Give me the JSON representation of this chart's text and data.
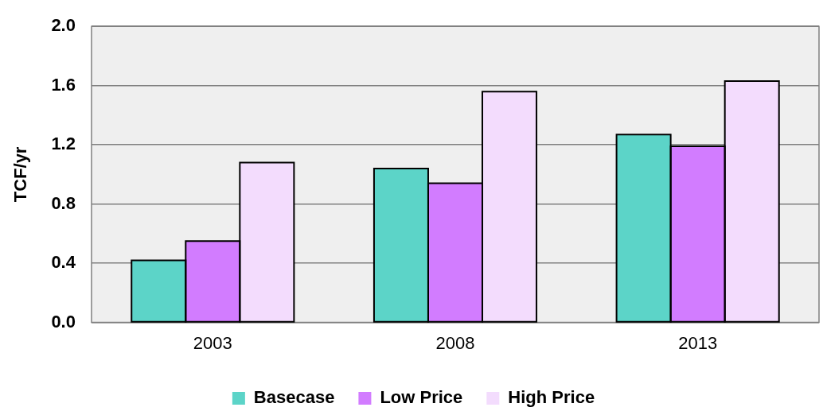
{
  "chart_data": {
    "type": "bar",
    "ylabel": "TCF/yr",
    "categories": [
      "2003",
      "2008",
      "2013"
    ],
    "series": [
      {
        "name": "Basecase",
        "color": "#5cd4c8",
        "values": [
          0.42,
          1.04,
          1.27
        ]
      },
      {
        "name": "Low Price",
        "color": "#d27cff",
        "values": [
          0.55,
          0.94,
          1.19
        ]
      },
      {
        "name": "High Price",
        "color": "#f3dcfd",
        "values": [
          1.08,
          1.56,
          1.63
        ]
      }
    ],
    "ylim": [
      0,
      2
    ],
    "yticks": [
      {
        "value": 0,
        "label": "0.0"
      },
      0.4,
      0.8,
      1.2,
      1.6,
      {
        "value": 2,
        "label": "2.0"
      }
    ],
    "grid": "y",
    "legend": "bottom"
  }
}
